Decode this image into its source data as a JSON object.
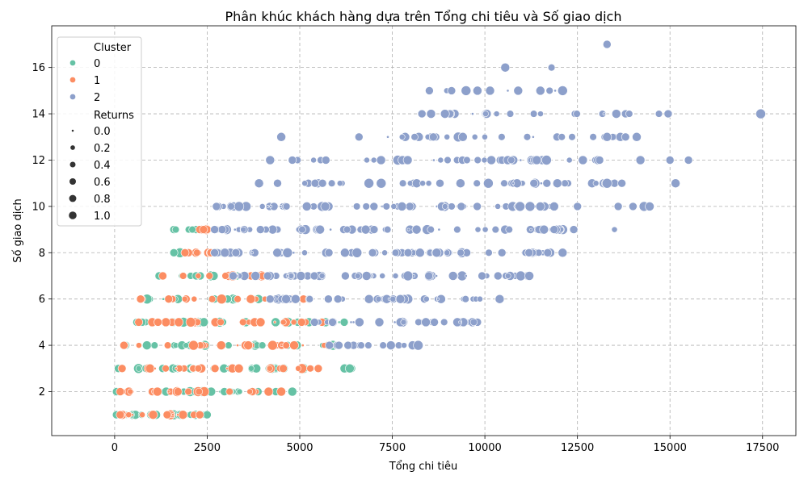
{
  "chart_data": {
    "type": "scatter",
    "title": "Phân khúc khách hàng dựa trên Tổng chi tiêu và Số giao dịch",
    "xlabel": "Tổng chi tiêu",
    "ylabel": "Số giao dịch",
    "xlim": [
      -1700,
      18400
    ],
    "ylim": [
      0.1,
      17.8
    ],
    "xticks": [
      0,
      2500,
      5000,
      7500,
      10000,
      12500,
      15000,
      17500
    ],
    "xtick_labels": [
      "0",
      "2500",
      "5000",
      "7500",
      "10000",
      "12500",
      "15000",
      "17500"
    ],
    "yticks": [
      2,
      4,
      6,
      8,
      10,
      12,
      14,
      16
    ],
    "ytick_labels": [
      "2",
      "4",
      "6",
      "8",
      "10",
      "12",
      "14",
      "16"
    ],
    "grid": true,
    "legend_position": "top-left",
    "hue_legend": {
      "title": "Cluster",
      "entries": [
        {
          "label": "0",
          "color": "#66c2a5"
        },
        {
          "label": "1",
          "color": "#fc8d62"
        },
        {
          "label": "2",
          "color": "#8da0cb"
        }
      ]
    },
    "size_legend": {
      "title": "Returns",
      "entries": [
        {
          "label": "0.0",
          "value": 0.0
        },
        {
          "label": "0.2",
          "value": 0.2
        },
        {
          "label": "0.4",
          "value": 0.4
        },
        {
          "label": "0.6",
          "value": 0.6
        },
        {
          "label": "0.8",
          "value": 0.8
        },
        {
          "label": "1.0",
          "value": 1.0
        }
      ]
    },
    "series": [
      {
        "name": "0",
        "color": "#66c2a5",
        "ranges": [
          {
            "y": 1,
            "x_min": 50,
            "x_max": 2500,
            "density": 22
          },
          {
            "y": 2,
            "x_min": 50,
            "x_max": 4800,
            "density": 26
          },
          {
            "y": 3,
            "x_min": 100,
            "x_max": 6400,
            "density": 30
          },
          {
            "y": 4,
            "x_min": 300,
            "x_max": 6300,
            "density": 28
          },
          {
            "y": 5,
            "x_min": 600,
            "x_max": 6200,
            "density": 24
          },
          {
            "y": 6,
            "x_min": 700,
            "x_max": 4700,
            "density": 18
          },
          {
            "y": 7,
            "x_min": 1200,
            "x_max": 3300,
            "density": 10
          },
          {
            "y": 8,
            "x_min": 1600,
            "x_max": 3200,
            "density": 7
          },
          {
            "y": 9,
            "x_min": 1600,
            "x_max": 2200,
            "density": 2
          }
        ],
        "points": [
          {
            "x": 6350,
            "y": 3,
            "returns": 0.8
          },
          {
            "x": 4800,
            "y": 2,
            "returns": 0.8
          },
          {
            "x": 1650,
            "y": 9,
            "returns": 0.4
          },
          {
            "x": 2100,
            "y": 9,
            "returns": 0.4
          }
        ]
      },
      {
        "name": "1",
        "color": "#fc8d62",
        "ranges": [
          {
            "y": 1,
            "x_min": 150,
            "x_max": 2300,
            "density": 18
          },
          {
            "y": 2,
            "x_min": 150,
            "x_max": 4500,
            "density": 22
          },
          {
            "y": 3,
            "x_min": 200,
            "x_max": 5500,
            "density": 24
          },
          {
            "y": 4,
            "x_min": 250,
            "x_max": 6000,
            "density": 24
          },
          {
            "y": 5,
            "x_min": 650,
            "x_max": 5600,
            "density": 22
          },
          {
            "y": 6,
            "x_min": 700,
            "x_max": 5100,
            "density": 18
          },
          {
            "y": 7,
            "x_min": 1300,
            "x_max": 4000,
            "density": 12
          },
          {
            "y": 8,
            "x_min": 1900,
            "x_max": 2600,
            "density": 6
          },
          {
            "y": 9,
            "x_min": 2300,
            "x_max": 2500,
            "density": 2
          }
        ],
        "points": [
          {
            "x": 4500,
            "y": 2,
            "returns": 0.8
          },
          {
            "x": 2400,
            "y": 9,
            "returns": 0.6
          }
        ]
      },
      {
        "name": "2",
        "color": "#8da0cb",
        "ranges": [
          {
            "y": 4,
            "x_min": 5800,
            "x_max": 8200,
            "density": 14
          },
          {
            "y": 5,
            "x_min": 5400,
            "x_max": 9800,
            "density": 30
          },
          {
            "y": 6,
            "x_min": 4200,
            "x_max": 10400,
            "density": 42
          },
          {
            "y": 7,
            "x_min": 3200,
            "x_max": 11200,
            "density": 55
          },
          {
            "y": 8,
            "x_min": 2700,
            "x_max": 12100,
            "density": 65
          },
          {
            "y": 9,
            "x_min": 2700,
            "x_max": 12400,
            "density": 65
          },
          {
            "y": 10,
            "x_min": 2800,
            "x_max": 12500,
            "density": 60
          },
          {
            "y": 11,
            "x_min": 4400,
            "x_max": 13500,
            "density": 50
          },
          {
            "y": 12,
            "x_min": 4800,
            "x_max": 13100,
            "density": 40
          },
          {
            "y": 13,
            "x_min": 6600,
            "x_max": 13800,
            "density": 28
          },
          {
            "y": 14,
            "x_min": 8300,
            "x_max": 13800,
            "density": 18
          },
          {
            "y": 15,
            "x_min": 8500,
            "x_max": 12100,
            "density": 7
          }
        ],
        "points": [
          {
            "x": 8200,
            "y": 4,
            "returns": 1.0
          },
          {
            "x": 10400,
            "y": 6,
            "returns": 0.8
          },
          {
            "x": 9700,
            "y": 5,
            "returns": 0.4
          },
          {
            "x": 11200,
            "y": 7,
            "returns": 0.8
          },
          {
            "x": 12100,
            "y": 8,
            "returns": 0.8
          },
          {
            "x": 13500,
            "y": 9,
            "returns": 0.2
          },
          {
            "x": 14000,
            "y": 10,
            "returns": 0.6
          },
          {
            "x": 14300,
            "y": 10,
            "returns": 1.0
          },
          {
            "x": 14450,
            "y": 10,
            "returns": 0.8
          },
          {
            "x": 13600,
            "y": 10,
            "returns": 0.6
          },
          {
            "x": 15150,
            "y": 11,
            "returns": 0.8
          },
          {
            "x": 13700,
            "y": 11,
            "returns": 0.6
          },
          {
            "x": 13300,
            "y": 11,
            "returns": 1.0
          },
          {
            "x": 14200,
            "y": 12,
            "returns": 0.8
          },
          {
            "x": 15000,
            "y": 12,
            "returns": 0.6
          },
          {
            "x": 15500,
            "y": 12,
            "returns": 0.6
          },
          {
            "x": 14100,
            "y": 13,
            "returns": 0.8
          },
          {
            "x": 13300,
            "y": 13,
            "returns": 0.8
          },
          {
            "x": 14700,
            "y": 14,
            "returns": 0.4
          },
          {
            "x": 14950,
            "y": 14,
            "returns": 0.6
          },
          {
            "x": 17450,
            "y": 14,
            "returns": 1.0
          },
          {
            "x": 13550,
            "y": 14,
            "returns": 0.8
          },
          {
            "x": 13900,
            "y": 14,
            "returns": 0.4
          },
          {
            "x": 8500,
            "y": 15,
            "returns": 0.6
          },
          {
            "x": 9100,
            "y": 15,
            "returns": 0.6
          },
          {
            "x": 9800,
            "y": 15,
            "returns": 0.8
          },
          {
            "x": 10900,
            "y": 15,
            "returns": 0.8
          },
          {
            "x": 11500,
            "y": 15,
            "returns": 0.8
          },
          {
            "x": 12100,
            "y": 15,
            "returns": 1.0
          },
          {
            "x": 10550,
            "y": 16,
            "returns": 0.8
          },
          {
            "x": 11800,
            "y": 16,
            "returns": 0.4
          },
          {
            "x": 13300,
            "y": 17,
            "returns": 0.6
          },
          {
            "x": 4500,
            "y": 13,
            "returns": 0.8
          },
          {
            "x": 4200,
            "y": 12,
            "returns": 0.8
          },
          {
            "x": 3900,
            "y": 11,
            "returns": 0.8
          },
          {
            "x": 2750,
            "y": 10,
            "returns": 0.6
          }
        ]
      }
    ]
  }
}
